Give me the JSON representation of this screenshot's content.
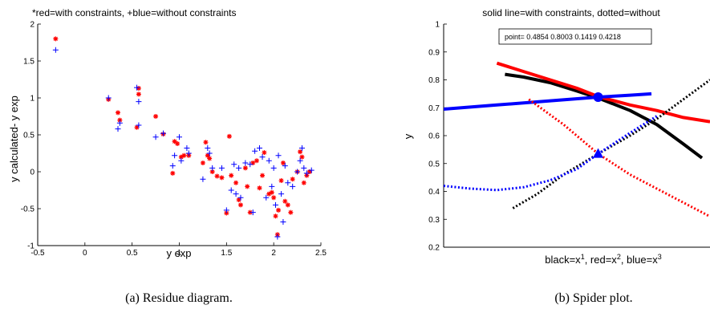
{
  "captions": {
    "left": "(a) Residue diagram.",
    "right": "(b) Spider plot."
  },
  "chart_data": [
    {
      "type": "scatter",
      "title": "*red=with constraints, +blue=without constraints",
      "xlabel": "y exp",
      "ylabel": "y calculated- y exp",
      "xlim": [
        -0.5,
        2.5
      ],
      "ylim": [
        -1,
        2
      ],
      "xticks": [
        -0.5,
        0,
        0.5,
        1,
        1.5,
        2,
        2.5
      ],
      "xtick_labels": [
        "-0.5",
        "0",
        "0.5",
        "1",
        "1.5",
        "2",
        "2.5"
      ],
      "yticks": [
        -1,
        -0.5,
        0,
        0.5,
        1,
        1.5,
        2
      ],
      "ytick_labels": [
        "-1",
        "-0.5",
        "0",
        "0.5",
        "1",
        "1.5",
        "2"
      ],
      "grid": false,
      "series": [
        {
          "color": "#ff0000",
          "marker": "*",
          "points": [
            [
              -0.31,
              1.8
            ],
            [
              0.25,
              0.98
            ],
            [
              0.35,
              0.8
            ],
            [
              0.37,
              0.7
            ],
            [
              0.55,
              0.6
            ],
            [
              0.57,
              1.13
            ],
            [
              0.57,
              1.05
            ],
            [
              0.75,
              0.75
            ],
            [
              0.83,
              0.51
            ],
            [
              0.93,
              -0.02
            ],
            [
              0.95,
              0.41
            ],
            [
              0.98,
              0.38
            ],
            [
              1.02,
              0.2
            ],
            [
              1.05,
              0.22
            ],
            [
              1.1,
              0.22
            ],
            [
              1.25,
              0.12
            ],
            [
              1.28,
              0.4
            ],
            [
              1.3,
              0.22
            ],
            [
              1.32,
              0.18
            ],
            [
              1.35,
              0.0
            ],
            [
              1.4,
              -0.06
            ],
            [
              1.45,
              -0.08
            ],
            [
              1.5,
              -0.56
            ],
            [
              1.53,
              0.48
            ],
            [
              1.55,
              -0.05
            ],
            [
              1.6,
              -0.15
            ],
            [
              1.63,
              -0.38
            ],
            [
              1.65,
              -0.45
            ],
            [
              1.7,
              0.05
            ],
            [
              1.72,
              -0.2
            ],
            [
              1.75,
              -0.55
            ],
            [
              1.78,
              0.12
            ],
            [
              1.82,
              0.15
            ],
            [
              1.85,
              -0.22
            ],
            [
              1.88,
              -0.05
            ],
            [
              1.9,
              0.26
            ],
            [
              1.95,
              -0.3
            ],
            [
              1.98,
              -0.28
            ],
            [
              2.0,
              -0.35
            ],
            [
              2.02,
              -0.6
            ],
            [
              2.04,
              -0.85
            ],
            [
              2.05,
              -0.52
            ],
            [
              2.08,
              -0.12
            ],
            [
              2.1,
              0.12
            ],
            [
              2.12,
              -0.4
            ],
            [
              2.15,
              -0.45
            ],
            [
              2.18,
              -0.55
            ],
            [
              2.2,
              -0.1
            ],
            [
              2.25,
              0.0
            ],
            [
              2.28,
              0.27
            ],
            [
              2.3,
              0.2
            ],
            [
              2.32,
              -0.15
            ],
            [
              2.35,
              -0.05
            ],
            [
              2.38,
              0.0
            ]
          ]
        },
        {
          "color": "#0000ff",
          "marker": "+",
          "points": [
            [
              -0.31,
              1.65
            ],
            [
              0.25,
              1.0
            ],
            [
              0.35,
              0.58
            ],
            [
              0.37,
              0.66
            ],
            [
              0.55,
              1.14
            ],
            [
              0.57,
              0.95
            ],
            [
              0.57,
              0.63
            ],
            [
              0.75,
              0.47
            ],
            [
              0.83,
              0.52
            ],
            [
              0.93,
              0.08
            ],
            [
              0.95,
              0.22
            ],
            [
              1.0,
              0.47
            ],
            [
              1.02,
              0.15
            ],
            [
              1.08,
              0.32
            ],
            [
              1.1,
              0.25
            ],
            [
              1.25,
              -0.1
            ],
            [
              1.3,
              0.32
            ],
            [
              1.32,
              0.25
            ],
            [
              1.35,
              0.05
            ],
            [
              1.45,
              0.05
            ],
            [
              1.5,
              -0.52
            ],
            [
              1.55,
              -0.25
            ],
            [
              1.58,
              0.1
            ],
            [
              1.6,
              -0.3
            ],
            [
              1.63,
              0.05
            ],
            [
              1.65,
              -0.35
            ],
            [
              1.7,
              0.12
            ],
            [
              1.75,
              0.1
            ],
            [
              1.78,
              -0.55
            ],
            [
              1.8,
              0.28
            ],
            [
              1.85,
              0.32
            ],
            [
              1.88,
              0.2
            ],
            [
              1.92,
              -0.35
            ],
            [
              1.95,
              0.15
            ],
            [
              1.98,
              -0.2
            ],
            [
              2.0,
              0.05
            ],
            [
              2.02,
              -0.45
            ],
            [
              2.04,
              -0.88
            ],
            [
              2.05,
              0.22
            ],
            [
              2.08,
              -0.3
            ],
            [
              2.1,
              -0.68
            ],
            [
              2.12,
              0.08
            ],
            [
              2.15,
              -0.15
            ],
            [
              2.2,
              -0.2
            ],
            [
              2.25,
              0.0
            ],
            [
              2.28,
              0.15
            ],
            [
              2.3,
              0.32
            ],
            [
              2.32,
              0.05
            ],
            [
              2.35,
              -0.02
            ],
            [
              2.4,
              0.02
            ]
          ]
        }
      ]
    },
    {
      "type": "line",
      "title": "solid line=with constraints, dotted=without",
      "xlabel_parts": [
        {
          "t": "black=x"
        },
        {
          "t": "1",
          "sup": true
        },
        {
          "t": ", red=x"
        },
        {
          "t": "2",
          "sup": true
        },
        {
          "t": ", blue=x"
        },
        {
          "t": "3",
          "sup": true
        }
      ],
      "ylabel": "y",
      "xlim": [
        0,
        1
      ],
      "ylim": [
        0.2,
        1
      ],
      "yticks": [
        0.2,
        0.3,
        0.4,
        0.5,
        0.6,
        0.7,
        0.8,
        0.9,
        1
      ],
      "ytick_labels": [
        "0.2",
        "0.3",
        "0.4",
        "0.5",
        "0.6",
        "0.7",
        "0.8",
        "0.9",
        "1"
      ],
      "grid": false,
      "point_box": "point= 0.4854    0.8003    0.1419    0.4218",
      "series": [
        {
          "color": "#000000",
          "style": "solid",
          "x": [
            0.23,
            0.3,
            0.4,
            0.5,
            0.58,
            0.7,
            0.8,
            0.9,
            0.97
          ],
          "y": [
            0.82,
            0.81,
            0.79,
            0.76,
            0.735,
            0.69,
            0.64,
            0.57,
            0.52
          ]
        },
        {
          "color": "#ff0000",
          "style": "solid",
          "x": [
            0.2,
            0.3,
            0.4,
            0.5,
            0.58,
            0.7,
            0.8,
            0.9,
            1.0
          ],
          "y": [
            0.86,
            0.83,
            0.8,
            0.77,
            0.74,
            0.71,
            0.69,
            0.665,
            0.65
          ]
        },
        {
          "color": "#0000ff",
          "style": "solid",
          "x": [
            0.0,
            0.2,
            0.4,
            0.58,
            0.7,
            0.78
          ],
          "y": [
            0.695,
            0.71,
            0.725,
            0.738,
            0.745,
            0.75
          ]
        },
        {
          "color": "#000000",
          "style": "dotted",
          "x": [
            0.26,
            0.35,
            0.45,
            0.58,
            0.7,
            0.8,
            0.9,
            1.0
          ],
          "y": [
            0.34,
            0.39,
            0.46,
            0.535,
            0.6,
            0.66,
            0.73,
            0.8
          ]
        },
        {
          "color": "#ff0000",
          "style": "dotted",
          "x": [
            0.32,
            0.45,
            0.58,
            0.7,
            0.8,
            0.9,
            1.0
          ],
          "y": [
            0.73,
            0.64,
            0.535,
            0.46,
            0.41,
            0.36,
            0.31
          ]
        },
        {
          "color": "#0000ff",
          "style": "dotted",
          "x": [
            0.0,
            0.1,
            0.2,
            0.3,
            0.4,
            0.5,
            0.58,
            0.7,
            0.8
          ],
          "y": [
            0.42,
            0.41,
            0.405,
            0.415,
            0.44,
            0.48,
            0.535,
            0.61,
            0.67
          ]
        }
      ],
      "markers": [
        {
          "x": 0.58,
          "y": 0.738,
          "shape": "circle",
          "color": "#0000ff"
        },
        {
          "x": 0.58,
          "y": 0.535,
          "shape": "triangle",
          "color": "#0000ff"
        }
      ]
    }
  ]
}
